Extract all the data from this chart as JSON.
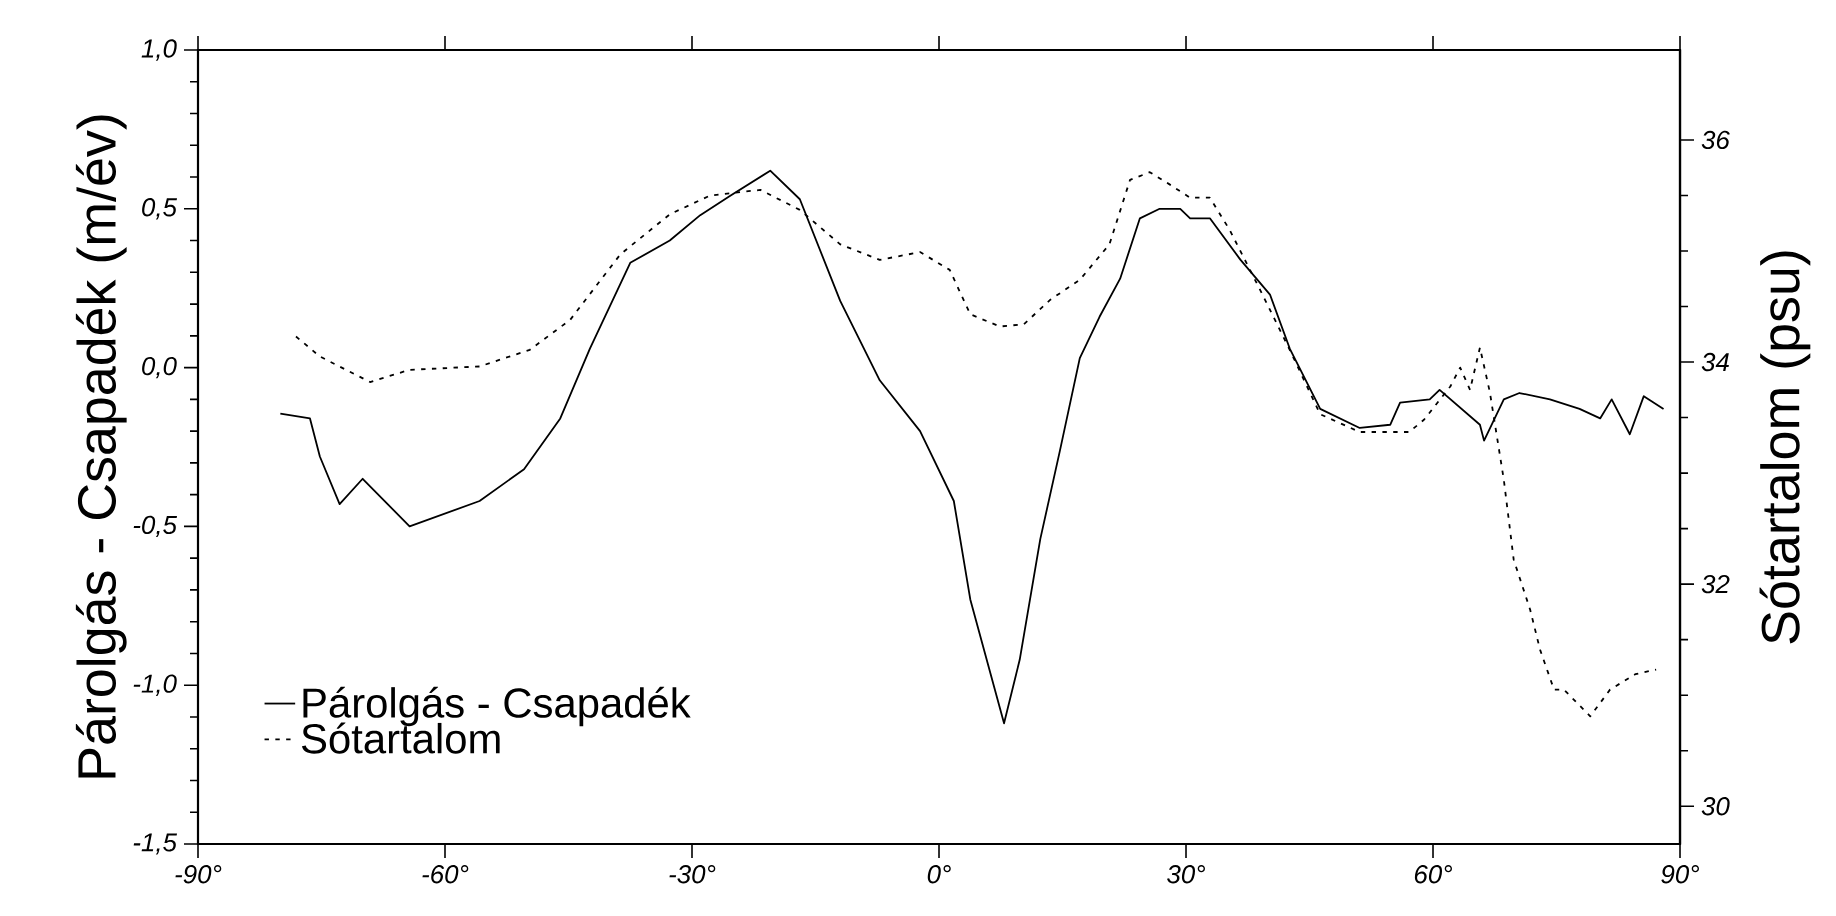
{
  "chart_data": {
    "type": "line",
    "ylabel": "Párolgás - Csapadék (m/év)",
    "y2label": "Sótartalom (psu)",
    "xlim": [
      -90,
      90
    ],
    "xticks": [
      {
        "value": -90,
        "label": "-90°"
      },
      {
        "value": -60,
        "label": "-60°"
      },
      {
        "value": -30,
        "label": "-30°"
      },
      {
        "value": 0,
        "label": "0°"
      },
      {
        "value": 30,
        "label": "30°"
      },
      {
        "value": 60,
        "label": "60°"
      },
      {
        "value": 90,
        "label": "90°"
      }
    ],
    "ylim": [
      -1.5,
      1.0
    ],
    "yticks": [
      {
        "value": -1.5,
        "label": "-1,5"
      },
      {
        "value": -1.0,
        "label": "-1,0"
      },
      {
        "value": -0.5,
        "label": "-0,5"
      },
      {
        "value": 0.0,
        "label": "0,0"
      },
      {
        "value": 0.5,
        "label": "0,5"
      },
      {
        "value": 1.0,
        "label": "1,0"
      }
    ],
    "y2lim": [
      29.66,
      36.81
    ],
    "y2ticks": [
      30,
      32,
      34,
      36
    ],
    "grid": false,
    "legend": "bottom left",
    "marker": "none",
    "series": [
      {
        "name": "Párolgás - Csapadék",
        "color": "#000000",
        "line_style": "solid",
        "x": [
          -80,
          -76.4,
          -75.2,
          -72.8,
          -70,
          -64.3,
          -55.8,
          -50.4,
          -46,
          -42.4,
          -37.5,
          -32.7,
          -29,
          -25.4,
          -20.5,
          -16.9,
          -12,
          -7.2,
          -2.3,
          1.8,
          3.8,
          7.9,
          9.8,
          12.3,
          14.7,
          17.1,
          19.5,
          22,
          24.4,
          26.8,
          29.3,
          30.5,
          32.9,
          36.6,
          40.2,
          42.6,
          46.3,
          51.1,
          54.8,
          56,
          59.6,
          60.8,
          65.7,
          66.2,
          68.6,
          70.5,
          74.2,
          77.8,
          80.3,
          81.7,
          83.9,
          85.6,
          88
        ],
        "values": [
          -0.145,
          -0.16,
          -0.28,
          -0.43,
          -0.35,
          -0.5,
          -0.42,
          -0.32,
          -0.16,
          0.06,
          0.33,
          0.4,
          0.48,
          0.54,
          0.62,
          0.53,
          0.21,
          -0.04,
          -0.2,
          -0.42,
          -0.73,
          -1.12,
          -0.92,
          -0.54,
          -0.26,
          0.03,
          0.16,
          0.28,
          0.47,
          0.5,
          0.5,
          0.47,
          0.47,
          0.34,
          0.23,
          0.06,
          -0.13,
          -0.19,
          -0.18,
          -0.11,
          -0.1,
          -0.07,
          -0.18,
          -0.23,
          -0.1,
          -0.08,
          -0.1,
          -0.13,
          -0.16,
          -0.1,
          -0.21,
          -0.09,
          -0.13
        ]
      },
      {
        "name": "Sótartalom",
        "color": "#000000",
        "line_style": "dotted",
        "axis": "y2",
        "x": [
          -78.1,
          -75.2,
          -69.1,
          -64.3,
          -55.8,
          -49.7,
          -44.8,
          -38.7,
          -32.7,
          -27.8,
          -21.7,
          -16.9,
          -12,
          -7.2,
          -2.3,
          1.3,
          3.8,
          7.4,
          10.3,
          13.5,
          17.1,
          20.7,
          23.2,
          25.6,
          28,
          30.5,
          32.9,
          35.3,
          39,
          42.6,
          46.3,
          51.1,
          57.1,
          58.9,
          62.1,
          63.3,
          64.5,
          65.7,
          66.9,
          68.6,
          69.8,
          71.8,
          73,
          74.7,
          75.9,
          79.1,
          81.5,
          84.6,
          87.1
        ],
        "values": [
          34.23,
          34.05,
          33.82,
          33.93,
          33.96,
          34.11,
          34.38,
          34.97,
          35.33,
          35.5,
          35.55,
          35.37,
          35.06,
          34.92,
          34.99,
          34.83,
          34.43,
          34.32,
          34.34,
          34.56,
          34.74,
          35.06,
          35.64,
          35.71,
          35.6,
          35.48,
          35.48,
          35.19,
          34.65,
          34.11,
          33.53,
          33.37,
          33.37,
          33.48,
          33.78,
          33.95,
          33.75,
          34.13,
          33.73,
          32.94,
          32.22,
          31.77,
          31.41,
          31.05,
          31.05,
          30.81,
          31.05,
          31.19,
          31.23
        ]
      }
    ]
  }
}
